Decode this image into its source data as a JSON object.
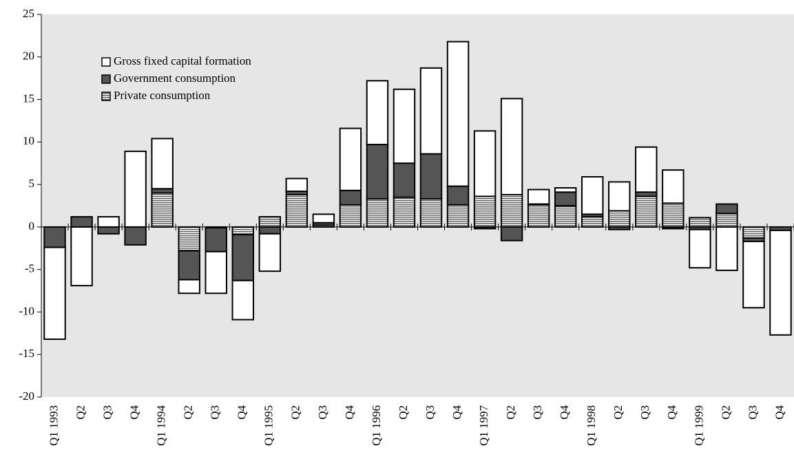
{
  "chart_data": {
    "type": "stacked-bar",
    "categories": [
      "Q1 1993",
      "Q2",
      "Q3",
      "Q4",
      "Q1 1994",
      "Q2",
      "Q3",
      "Q4",
      "Q1 1995",
      "Q2",
      "Q3",
      "Q4",
      "Q1 1996",
      "Q2",
      "Q3",
      "Q4",
      "Q1 1997",
      "Q2",
      "Q3",
      "Q4",
      "Q1 1998",
      "Q2",
      "Q3",
      "Q4",
      "Q1 1999",
      "Q2",
      "Q3",
      "Q4"
    ],
    "series": [
      {
        "name": "Gross fixed capital formation",
        "color": "#ffffff",
        "values": [
          -10.8,
          -6.9,
          1.2,
          8.9,
          5.9,
          -1.6,
          -4.9,
          -4.6,
          -4.4,
          1.5,
          1.0,
          7.3,
          7.5,
          8.7,
          10.1,
          17.0,
          7.7,
          11.3,
          1.7,
          0.5,
          4.4,
          3.4,
          5.3,
          3.9,
          -4.5,
          -5.1,
          -7.8,
          -12.3
        ]
      },
      {
        "name": "Government consumption",
        "color": "#555555",
        "values": [
          -2.4,
          1.2,
          -0.8,
          -2.1,
          0.5,
          -3.4,
          -2.8,
          -5.4,
          -0.8,
          0.4,
          0.3,
          1.7,
          6.4,
          4.0,
          5.3,
          2.2,
          -0.2,
          -1.6,
          0.1,
          1.6,
          0.3,
          -0.3,
          0.5,
          -0.2,
          -0.3,
          1.1,
          -0.4,
          -0.4
        ]
      },
      {
        "name": "Private consumption",
        "color": "#555555",
        "hatch": "horizontal",
        "values": [
          0,
          0,
          0,
          0,
          4.0,
          -2.8,
          -0.1,
          -0.9,
          1.2,
          3.8,
          0.2,
          2.6,
          3.3,
          3.5,
          3.3,
          2.6,
          3.6,
          3.8,
          2.6,
          2.5,
          1.2,
          1.9,
          3.6,
          2.8,
          1.1,
          1.6,
          -1.3,
          0
        ]
      }
    ],
    "ylim": [
      -20,
      25
    ],
    "yticks": [
      -20,
      -15,
      -10,
      -5,
      0,
      5,
      10,
      15,
      20,
      25
    ],
    "background": "#e6e6e6",
    "legend": "top-left"
  }
}
